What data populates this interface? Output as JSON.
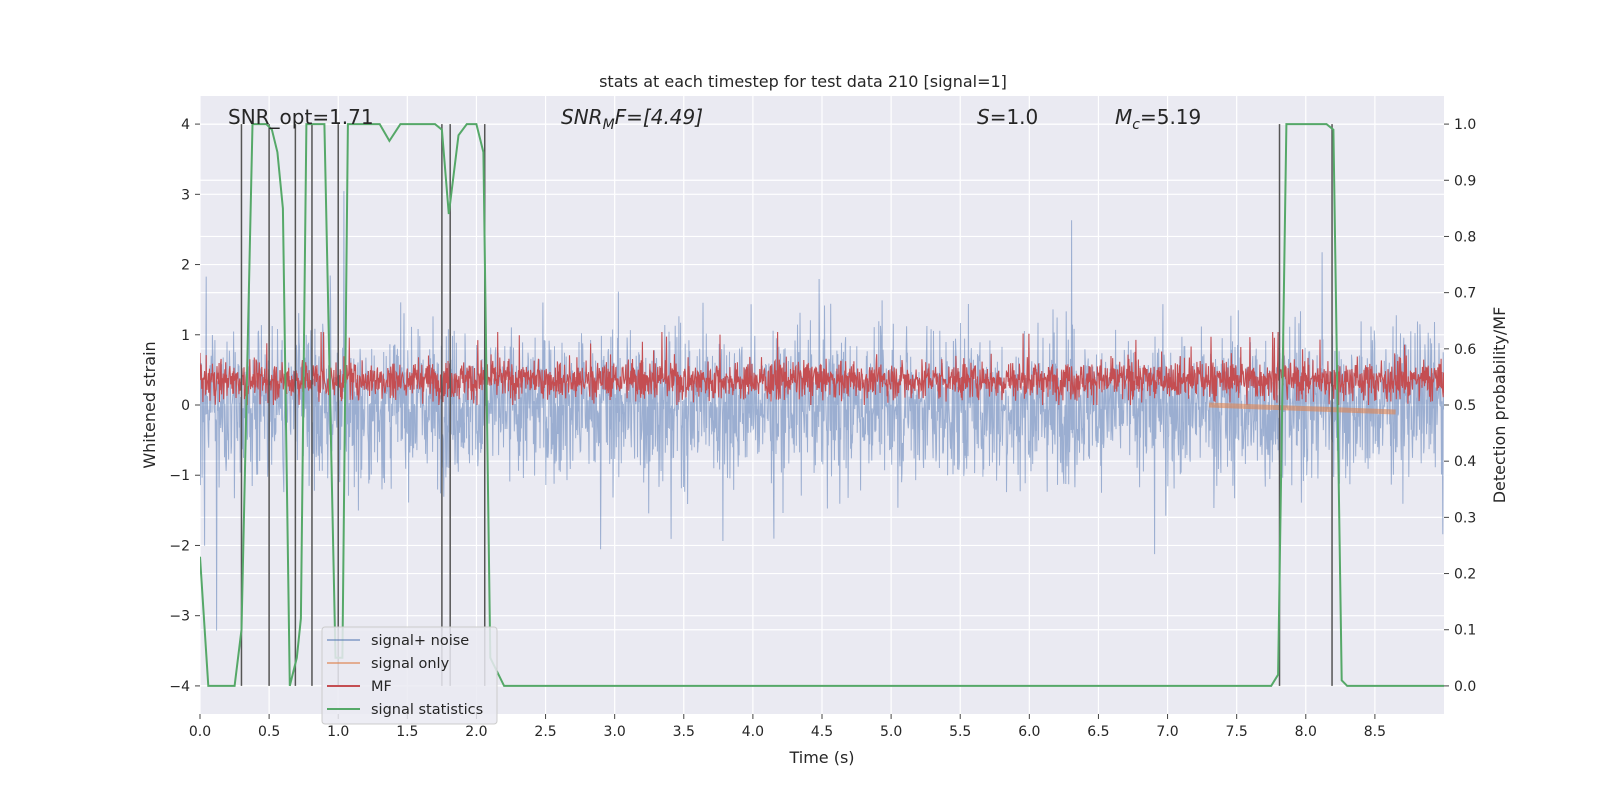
{
  "chart_data": {
    "type": "line",
    "title": "stats at each timestep for test data 210 [signal=1]",
    "xlabel": "Time (s)",
    "ylabel": "Whitened strain",
    "ylabel_right": "Detection probability/MF",
    "xlim": [
      0,
      9
    ],
    "ylim": [
      -4.4,
      4.4
    ],
    "ylim_right": [
      -0.05,
      1.05
    ],
    "x_ticks": [
      "0.0",
      "0.5",
      "1.0",
      "1.5",
      "2.0",
      "2.5",
      "3.0",
      "3.5",
      "4.0",
      "4.5",
      "5.0",
      "5.5",
      "6.0",
      "6.5",
      "7.0",
      "7.5",
      "8.0",
      "8.5"
    ],
    "y_ticks": [
      "4",
      "3",
      "2",
      "1",
      "0",
      "−1",
      "−2",
      "−3",
      "−4"
    ],
    "y_ticks_right": [
      "1.0",
      "0.9",
      "0.8",
      "0.7",
      "0.6",
      "0.5",
      "0.4",
      "0.3",
      "0.2",
      "0.1",
      "0.0"
    ],
    "grid": true,
    "legend_position": "lower-left",
    "annotations": [
      {
        "label": "SNR_opt=1.71"
      },
      {
        "label_main": "SNR",
        "label_sub": "M",
        "label_tail": "F=[4.49]"
      },
      {
        "label_main": "S",
        "label_tail": "=1.0"
      },
      {
        "label_main": "M",
        "label_sub": "c",
        "label_tail": "=5.19"
      }
    ],
    "series": [
      {
        "name": "signal+ noise",
        "color": "#4c72b0",
        "axis": "left",
        "envelope": {
          "typical_range": [
            -2.2,
            2.3
          ],
          "max": 3.6,
          "min": -4.0
        }
      },
      {
        "name": "signal only",
        "color": "#dd8452",
        "axis": "left",
        "x_start": 7.3,
        "x_end": 8.65,
        "y_start": 0.0,
        "y_end": -0.1
      },
      {
        "name": "MF",
        "color": "#c44e52",
        "axis": "right",
        "typical_range": [
          0.5,
          0.59
        ]
      },
      {
        "name": "signal statistics",
        "color": "#55a868",
        "axis": "right",
        "x": [
          0.0,
          0.06,
          0.25,
          0.3,
          0.38,
          0.42,
          0.48,
          0.52,
          0.56,
          0.6,
          0.65,
          0.7,
          0.73,
          0.77,
          0.82,
          0.9,
          0.98,
          1.03,
          1.07,
          1.12,
          1.2,
          1.3,
          1.37,
          1.45,
          1.55,
          1.7,
          1.75,
          1.8,
          1.87,
          1.93,
          2.0,
          2.05,
          2.1,
          2.2,
          3.0,
          4.0,
          5.0,
          6.0,
          6.5,
          7.0,
          7.5,
          7.75,
          7.8,
          7.86,
          7.9,
          8.0,
          8.15,
          8.2,
          8.26,
          8.3,
          8.4,
          9.0
        ],
        "y": [
          0.23,
          0.0,
          0.0,
          0.1,
          1.0,
          1.0,
          1.0,
          0.99,
          0.95,
          0.85,
          0.0,
          0.05,
          0.12,
          1.0,
          1.0,
          1.0,
          0.05,
          0.05,
          1.0,
          1.0,
          1.0,
          1.0,
          0.97,
          1.0,
          1.0,
          1.0,
          0.99,
          0.84,
          0.98,
          1.0,
          1.0,
          0.95,
          0.05,
          0.0,
          0.0,
          0.0,
          0.0,
          0.0,
          0.0,
          0.0,
          0.0,
          0.0,
          0.02,
          1.0,
          1.0,
          1.0,
          1.0,
          0.99,
          0.01,
          0.0,
          0.0,
          0.0
        ]
      },
      {
        "name": "markers",
        "color": "#555555",
        "axis": "right",
        "vertical_lines_x": [
          0.3,
          0.5,
          0.69,
          0.81,
          1.0,
          1.75,
          1.81,
          2.06,
          7.81,
          8.19
        ]
      }
    ]
  }
}
